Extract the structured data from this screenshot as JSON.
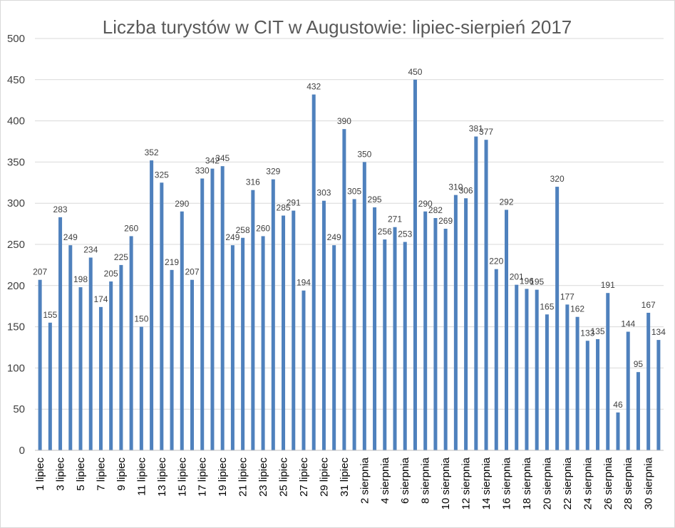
{
  "chart_data": {
    "type": "bar",
    "title": "Liczba turystów w CIT w Augustowie: lipiec-sierpień 2017",
    "xlabel": "",
    "ylabel": "",
    "ylim": [
      0,
      500
    ],
    "yticks": [
      0,
      50,
      100,
      150,
      200,
      250,
      300,
      350,
      400,
      450,
      500
    ],
    "grid": true,
    "legend": "none",
    "bar_color": "#4f81bd",
    "categories": [
      "1 lipiec",
      "2 lipiec",
      "3 lipiec",
      "4 lipiec",
      "5 lipiec",
      "6 lipiec",
      "7 lipiec",
      "8 lipiec",
      "9 lipiec",
      "10 lipiec",
      "11 lipiec",
      "12 lipiec",
      "13 lipiec",
      "14 lipiec",
      "15 lipiec",
      "16 lipiec",
      "17 lipiec",
      "18 lipiec",
      "19 lipiec",
      "20 lipiec",
      "21 lipiec",
      "22 lipiec",
      "23 lipiec",
      "24 lipiec",
      "25 lipiec",
      "26 lipiec",
      "27 lipiec",
      "28 lipiec",
      "29 lipiec",
      "30 lipiec",
      "31 lipiec",
      "1 sierpnia",
      "2 sierpnia",
      "3 sierpnia",
      "4 sierpnia",
      "5 sierpnia",
      "6 sierpnia",
      "7 sierpnia",
      "8 sierpnia",
      "9 sierpnia",
      "10 sierpnia",
      "11 sierpnia",
      "12 sierpnia",
      "13 sierpnia",
      "14 sierpnia",
      "15 sierpnia",
      "16 sierpnia",
      "17 sierpnia",
      "18 sierpnia",
      "19 sierpnia",
      "20 sierpnia",
      "21 sierpnia",
      "22 sierpnia",
      "23 sierpnia",
      "24 sierpnia",
      "25 sierpnia",
      "26 sierpnia",
      "27 sierpnia",
      "28 sierpnia",
      "29 sierpnia",
      "30 sierpnia",
      "31 sierpnia"
    ],
    "values": [
      207,
      155,
      283,
      249,
      198,
      234,
      174,
      205,
      225,
      260,
      150,
      352,
      325,
      219,
      290,
      207,
      330,
      342,
      345,
      249,
      258,
      316,
      260,
      329,
      285,
      291,
      194,
      432,
      303,
      249,
      390,
      305,
      350,
      295,
      256,
      271,
      253,
      450,
      290,
      282,
      269,
      310,
      306,
      381,
      377,
      220,
      292,
      201,
      196,
      195,
      165,
      320,
      177,
      162,
      133,
      135,
      191,
      46,
      144,
      95,
      167,
      134
    ],
    "visible_x_labels": [
      "1 lipiec",
      "3 lipiec",
      "5 lipiec",
      "7 lipiec",
      "9 lipiec",
      "11 lipiec",
      "13 lipiec",
      "15 lipiec",
      "17 lipiec",
      "19 lipiec",
      "21 lipiec",
      "23 lipiec",
      "25 lipiec",
      "27 lipiec",
      "29 lipiec",
      "31 lipiec",
      "2 sierpnia",
      "4 sierpnia",
      "6 sierpnia",
      "8 sierpnia",
      "10 sierpnia",
      "12 sierpnia",
      "14 sierpnia",
      "16 sierpnia",
      "18 sierpnia",
      "20 sierpnia",
      "22 sierpnia",
      "24 sierpnia",
      "26 sierpnia",
      "28 sierpnia",
      "30 sierpnia"
    ]
  }
}
